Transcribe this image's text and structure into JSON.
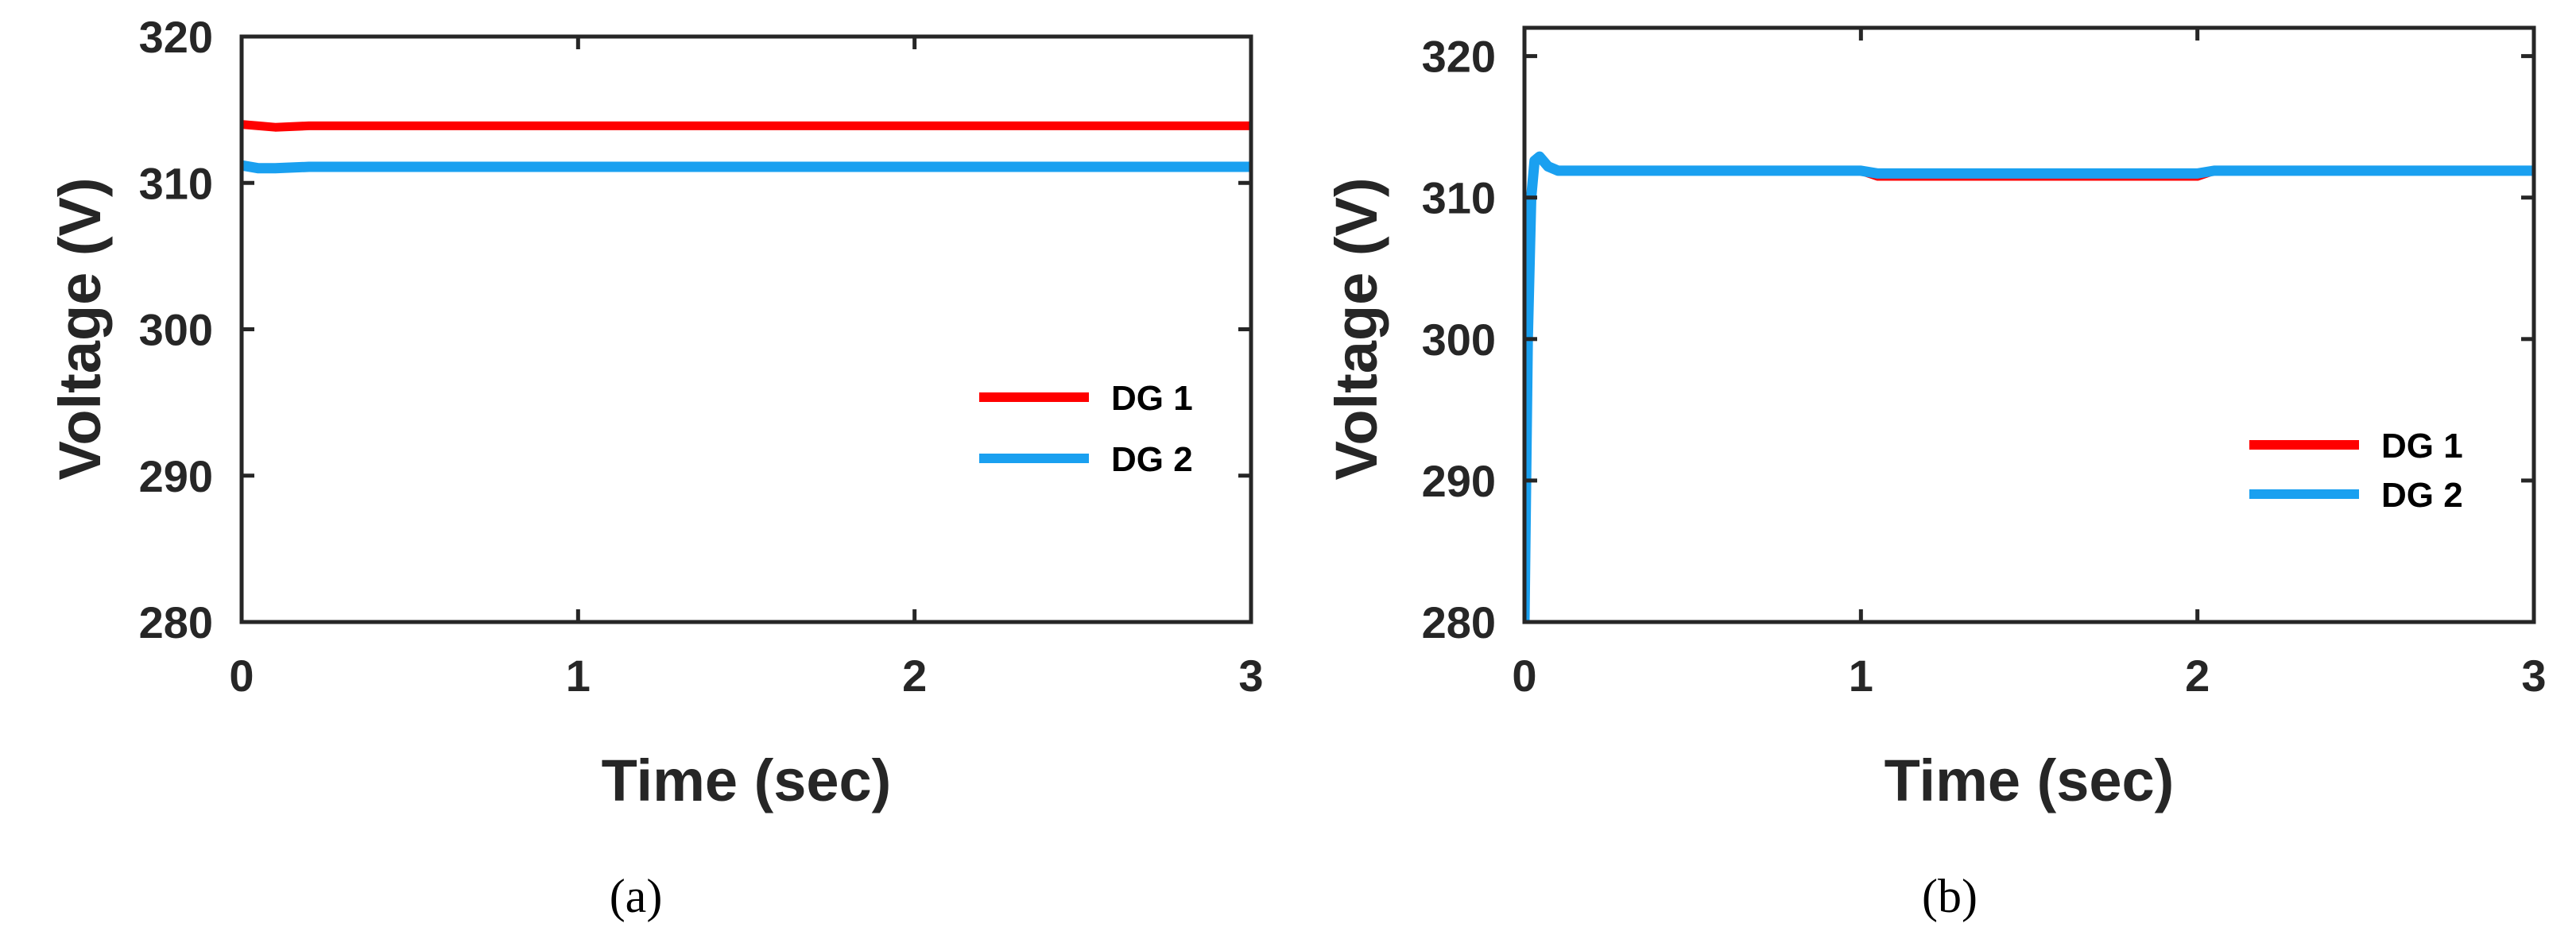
{
  "chart_data": [
    {
      "type": "line",
      "caption": "(a)",
      "xlabel": "Time (sec)",
      "ylabel": "Voltage (V)",
      "xlim": [
        0,
        3
      ],
      "ylim": [
        280,
        320
      ],
      "xticks": [
        0,
        1,
        2,
        3
      ],
      "yticks": [
        280,
        290,
        300,
        310,
        320
      ],
      "grid": false,
      "legend_position": "right-middle",
      "series": [
        {
          "name": "DG 1",
          "color": "#ff0000",
          "x": [
            0,
            0.05,
            0.1,
            0.2,
            3
          ],
          "y": [
            314,
            313.9,
            313.8,
            313.9,
            313.9
          ]
        },
        {
          "name": "DG 2",
          "color": "#1aa0f0",
          "x": [
            0,
            0.05,
            0.1,
            0.2,
            3
          ],
          "y": [
            311.2,
            311.0,
            311.0,
            311.1,
            311.1
          ]
        }
      ]
    },
    {
      "type": "line",
      "caption": "(b)",
      "xlabel": "Time (sec)",
      "ylabel": "Voltage (V)",
      "xlim": [
        0,
        3
      ],
      "ylim": [
        280,
        322
      ],
      "xticks": [
        0,
        1,
        2,
        3
      ],
      "yticks": [
        280,
        290,
        300,
        310,
        320
      ],
      "grid": false,
      "legend_position": "right-middle",
      "series": [
        {
          "name": "DG 1",
          "color": "#ff0000",
          "x": [
            0,
            0.01,
            0.02,
            0.03,
            0.045,
            0.07,
            0.1,
            0.3,
            1.0,
            1.05,
            1.5,
            2.0,
            2.05,
            2.5,
            3
          ],
          "y": [
            280,
            300,
            310,
            312.6,
            312.9,
            312.2,
            311.9,
            311.9,
            311.9,
            311.5,
            311.5,
            311.5,
            311.9,
            311.9,
            311.9
          ]
        },
        {
          "name": "DG 2",
          "color": "#1aa0f0",
          "x": [
            0,
            0.01,
            0.02,
            0.03,
            0.045,
            0.07,
            0.1,
            0.3,
            1.0,
            1.05,
            1.5,
            2.0,
            2.05,
            2.5,
            3
          ],
          "y": [
            280,
            300,
            310,
            312.6,
            312.9,
            312.2,
            311.9,
            311.9,
            311.9,
            311.7,
            311.7,
            311.7,
            311.9,
            311.9,
            311.9
          ]
        }
      ]
    }
  ]
}
